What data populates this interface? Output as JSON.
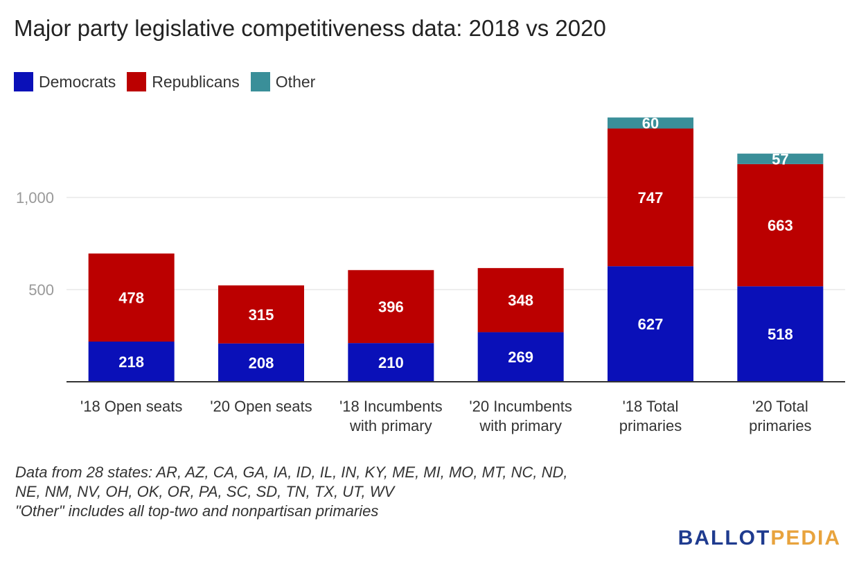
{
  "chart_data": {
    "type": "bar",
    "stacked": true,
    "title": "Major party legislative competitiveness data: 2018 vs 2020",
    "categories": [
      [
        "'18 Open seats"
      ],
      [
        "'20 Open seats"
      ],
      [
        "'18 Incumbents",
        "with primary"
      ],
      [
        "'20 Incumbents",
        "with primary"
      ],
      [
        "'18 Total",
        "primaries"
      ],
      [
        "'20 Total",
        "primaries"
      ]
    ],
    "series": [
      {
        "name": "Democrats",
        "color": "#0a10b8",
        "values": [
          218,
          208,
          210,
          269,
          627,
          518
        ]
      },
      {
        "name": "Republicans",
        "color": "#bb0000",
        "values": [
          478,
          315,
          396,
          348,
          747,
          663
        ]
      },
      {
        "name": "Other",
        "color": "#3a8f99",
        "values": [
          0,
          0,
          0,
          0,
          60,
          57
        ]
      }
    ],
    "y_ticks": [
      500,
      1000
    ],
    "y_tick_labels": [
      "500",
      "1,000"
    ],
    "ylim": [
      0,
      1450
    ],
    "grid": true,
    "legend_position": "top-left",
    "xlabel": "",
    "ylabel": ""
  },
  "footnote": {
    "lines": [
      "Data from 28 states: AR, AZ, CA, GA, IA, ID, IL, IN, KY, ME, MI, MO, MT, NC, ND,",
      "NE, NM, NV, OH, OK, OR, PA, SC, SD, TN, TX, UT, WV",
      "\"Other\" includes all top-two and nonpartisan primaries"
    ]
  },
  "brand": {
    "part1": "BALLOT",
    "part2": "PEDIA"
  }
}
